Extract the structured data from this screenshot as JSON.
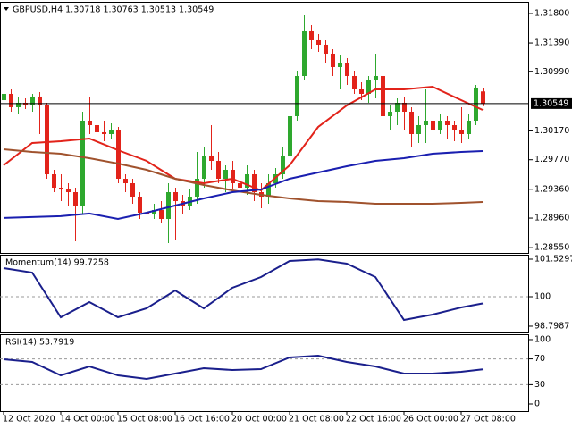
{
  "chart_data": [
    {
      "type": "candlestick",
      "title": "GBPUSD,H4  1.30718 1.30763 1.30513 1.30549",
      "up_color": "#2ea82e",
      "down_color": "#e2231a",
      "xlim": [
        -0.5,
        73.5
      ],
      "xticks": [
        {
          "value": 0,
          "label": "12 Oct 2020"
        },
        {
          "value": 8,
          "label": "14 Oct 00:00"
        },
        {
          "value": 16,
          "label": "15 Oct 08:00"
        },
        {
          "value": 24,
          "label": "16 Oct 16:00"
        },
        {
          "value": 32,
          "label": "20 Oct 00:00"
        },
        {
          "value": 40,
          "label": "21 Oct 08:00"
        },
        {
          "value": 48,
          "label": "22 Oct 16:00"
        },
        {
          "value": 56,
          "label": "26 Oct 00:00"
        },
        {
          "value": 64,
          "label": "27 Oct 08:00"
        }
      ],
      "ylim": [
        1.28477,
        1.31961
      ],
      "yticks": [
        {
          "value": 1.318,
          "label": "1.31800"
        },
        {
          "value": 1.3139,
          "label": "1.31390"
        },
        {
          "value": 1.3099,
          "label": "1.30990"
        },
        {
          "value": 1.3017,
          "label": "1.30170"
        },
        {
          "value": 1.2977,
          "label": "1.29770"
        },
        {
          "value": 1.2936,
          "label": "1.29360"
        },
        {
          "value": 1.2896,
          "label": "1.28960"
        },
        {
          "value": 1.2855,
          "label": "1.28550"
        }
      ],
      "current_price": {
        "value": 1.30549,
        "label": "1.30549"
      },
      "ohlc": [
        [
          1.30597,
          1.30808,
          1.30399,
          1.30684
        ],
        [
          1.30684,
          1.30746,
          1.30436,
          1.30498
        ],
        [
          1.30498,
          1.30647,
          1.30399,
          1.3056
        ],
        [
          1.3056,
          1.30622,
          1.30473,
          1.30523
        ],
        [
          1.30523,
          1.30684,
          1.30436,
          1.30647
        ],
        [
          1.30647,
          1.30709,
          1.30126,
          1.30523
        ],
        [
          1.30523,
          1.3056,
          1.29506,
          1.29568
        ],
        [
          1.29568,
          1.2963,
          1.2932,
          1.29382
        ],
        [
          1.29382,
          1.29568,
          1.29196,
          1.29357
        ],
        [
          1.29357,
          1.29444,
          1.29134,
          1.2932
        ],
        [
          1.2932,
          1.29382,
          1.28638,
          1.29134
        ],
        [
          1.29134,
          1.30436,
          1.2901,
          1.30312
        ],
        [
          1.30312,
          1.30647,
          1.30126,
          1.3025
        ],
        [
          1.3025,
          1.30374,
          1.30064,
          1.30151
        ],
        [
          1.30151,
          1.30312,
          1.30027,
          1.30126
        ],
        [
          1.30126,
          1.30275,
          1.30064,
          1.30188
        ],
        [
          1.30188,
          1.30225,
          1.29444,
          1.29506
        ],
        [
          1.29506,
          1.29568,
          1.2932,
          1.29444
        ],
        [
          1.29444,
          1.29506,
          1.29159,
          1.29258
        ],
        [
          1.29258,
          1.2932,
          1.28948,
          1.29035
        ],
        [
          1.29035,
          1.29196,
          1.28911,
          1.2901
        ],
        [
          1.2901,
          1.29159,
          1.28948,
          1.29072
        ],
        [
          1.29072,
          1.29196,
          1.28886,
          1.28948
        ],
        [
          1.28948,
          1.29444,
          1.28613,
          1.2932
        ],
        [
          1.2932,
          1.29382,
          1.28663,
          1.29196
        ],
        [
          1.29196,
          1.29283,
          1.2901,
          1.29134
        ],
        [
          1.29134,
          1.29357,
          1.29072,
          1.29258
        ],
        [
          1.29258,
          1.29878,
          1.29159,
          1.29506
        ],
        [
          1.29506,
          1.2994,
          1.29382,
          1.29816
        ],
        [
          1.29816,
          1.3025,
          1.2963,
          1.29754
        ],
        [
          1.29754,
          1.29878,
          1.29444,
          1.29506
        ],
        [
          1.29506,
          1.29692,
          1.2932,
          1.2963
        ],
        [
          1.2963,
          1.29754,
          1.29357,
          1.29444
        ],
        [
          1.29444,
          1.29568,
          1.2932,
          1.29382
        ],
        [
          1.29382,
          1.29692,
          1.29283,
          1.29568
        ],
        [
          1.29568,
          1.2963,
          1.29196,
          1.2932
        ],
        [
          1.2932,
          1.29444,
          1.29097,
          1.29258
        ],
        [
          1.29258,
          1.29568,
          1.29159,
          1.29444
        ],
        [
          1.29444,
          1.29655,
          1.29382,
          1.29568
        ],
        [
          1.29568,
          1.2994,
          1.29506,
          1.29816
        ],
        [
          1.29816,
          1.30436,
          1.29754,
          1.30374
        ],
        [
          1.30374,
          1.30994,
          1.30312,
          1.30932
        ],
        [
          1.30932,
          1.31775,
          1.3087,
          1.31552
        ],
        [
          1.31552,
          1.31639,
          1.31304,
          1.31428
        ],
        [
          1.31428,
          1.31515,
          1.31267,
          1.31366
        ],
        [
          1.31366,
          1.31428,
          1.31118,
          1.31242
        ],
        [
          1.31242,
          1.31304,
          1.30932,
          1.31056
        ],
        [
          1.31056,
          1.31217,
          1.30746,
          1.31118
        ],
        [
          1.31118,
          1.3118,
          1.30808,
          1.30932
        ],
        [
          1.30932,
          1.30994,
          1.30684,
          1.30746
        ],
        [
          1.30746,
          1.30845,
          1.30597,
          1.30684
        ],
        [
          1.30684,
          1.30932,
          1.3056,
          1.3087
        ],
        [
          1.3087,
          1.31242,
          1.30622,
          1.30932
        ],
        [
          1.30932,
          1.30994,
          1.30312,
          1.30374
        ],
        [
          1.30374,
          1.30523,
          1.30188,
          1.30436
        ],
        [
          1.30436,
          1.30622,
          1.3025,
          1.3056
        ],
        [
          1.3056,
          1.30647,
          1.30188,
          1.30436
        ],
        [
          1.30436,
          1.30498,
          1.2994,
          1.30126
        ],
        [
          1.30126,
          1.30374,
          1.30002,
          1.3025
        ],
        [
          1.3025,
          1.30746,
          1.30002,
          1.30312
        ],
        [
          1.30312,
          1.30374,
          1.2994,
          1.30188
        ],
        [
          1.30188,
          1.30399,
          1.30126,
          1.30312
        ],
        [
          1.30312,
          1.30374,
          1.30064,
          1.3025
        ],
        [
          1.3025,
          1.30312,
          1.30027,
          1.30188
        ],
        [
          1.30188,
          1.30498,
          1.30002,
          1.30126
        ],
        [
          1.30126,
          1.30399,
          1.30064,
          1.30312
        ],
        [
          1.30312,
          1.30808,
          1.3025,
          1.30771
        ],
        [
          1.30718,
          1.30763,
          1.30513,
          1.30549
        ]
      ],
      "lines": [
        {
          "color": "#e2231a",
          "x": [
            0,
            4,
            8,
            12,
            16,
            20,
            24,
            28,
            32,
            36,
            40,
            44,
            48,
            52,
            56,
            60,
            64,
            67
          ],
          "values": [
            1.29692,
            1.30002,
            1.30027,
            1.30064,
            1.29903,
            1.29754,
            1.29506,
            1.29444,
            1.29506,
            1.29345,
            1.29692,
            1.30225,
            1.30523,
            1.30746,
            1.30746,
            1.30783,
            1.30597,
            1.30461
          ]
        },
        {
          "color": "#a0522d",
          "x": [
            0,
            4,
            8,
            12,
            16,
            20,
            24,
            28,
            32,
            36,
            40,
            44,
            48,
            52,
            56,
            60,
            64,
            67
          ],
          "values": [
            1.29915,
            1.29878,
            1.29853,
            1.29791,
            1.29717,
            1.2963,
            1.29506,
            1.29419,
            1.29345,
            1.29283,
            1.29233,
            1.29196,
            1.29184,
            1.29159,
            1.29159,
            1.29159,
            1.29171,
            1.29184
          ]
        },
        {
          "color": "#1a1fb0",
          "x": [
            0,
            4,
            8,
            12,
            16,
            20,
            24,
            28,
            32,
            36,
            40,
            44,
            48,
            52,
            56,
            60,
            64,
            67
          ],
          "values": [
            1.28962,
            1.28974,
            1.28987,
            1.29024,
            1.28948,
            1.29035,
            1.29134,
            1.29233,
            1.2932,
            1.29357,
            1.29506,
            1.29593,
            1.2968,
            1.29754,
            1.29791,
            1.29853,
            1.29878,
            1.2989
          ]
        }
      ]
    },
    {
      "type": "line",
      "title": "Momentum(14) 99.7258",
      "xlim": [
        -0.5,
        73.5
      ],
      "ylim": [
        98.543,
        101.712
      ],
      "yticks": [
        101.5297,
        100,
        98.7987
      ],
      "levels": [
        100
      ],
      "lines": [
        {
          "color": "#1a1f8c",
          "x": [
            0,
            4,
            8,
            12,
            16,
            20,
            24,
            28,
            32,
            36,
            40,
            44,
            48,
            52,
            56,
            60,
            64,
            67
          ],
          "values": [
            101.165,
            100.983,
            99.162,
            99.782,
            99.162,
            99.527,
            100.255,
            99.527,
            100.364,
            100.801,
            101.457,
            101.52,
            101.347,
            100.801,
            99.053,
            99.272,
            99.563,
            99.7258
          ]
        }
      ]
    },
    {
      "type": "line",
      "title": "RSI(14) 53.7919",
      "xlim": [
        -0.5,
        73.5
      ],
      "ylim": [
        -11.1,
        108.3
      ],
      "yticks": [
        100,
        70,
        30,
        0
      ],
      "levels": [
        70,
        30
      ],
      "lines": [
        {
          "color": "#1a1f8c",
          "x": [
            0,
            4,
            8,
            12,
            16,
            20,
            24,
            28,
            32,
            36,
            40,
            44,
            48,
            52,
            56,
            60,
            64,
            67
          ],
          "values": [
            69.4,
            65.3,
            44.4,
            58.3,
            44.4,
            38.9,
            47.2,
            55.6,
            52.8,
            54.2,
            72.2,
            75.0,
            65.3,
            58.3,
            47.2,
            47.2,
            50.0,
            53.7919
          ]
        }
      ]
    }
  ]
}
